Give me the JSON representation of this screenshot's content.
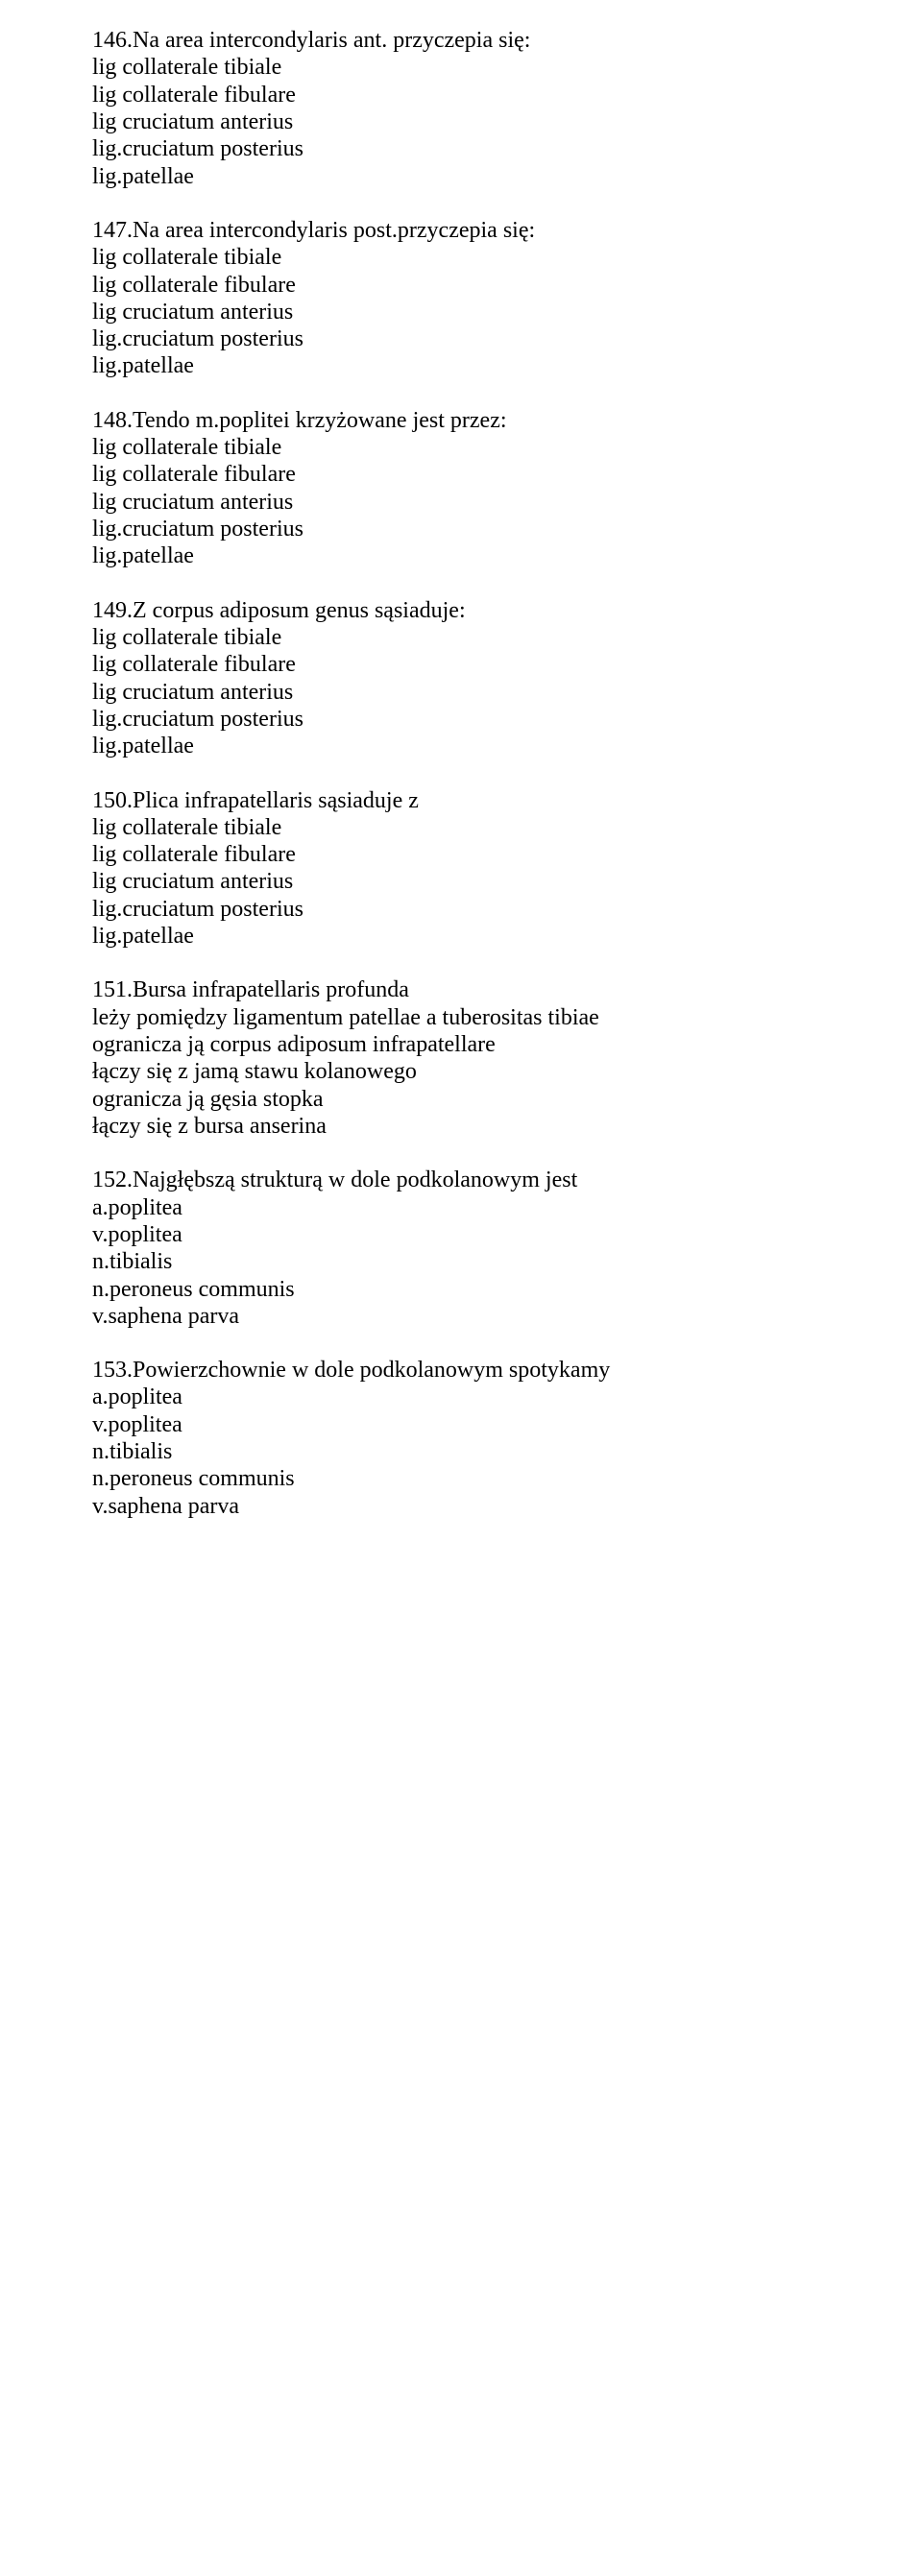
{
  "questions": [
    {
      "title": "146.Na area intercondylaris ant. przyczepia się:",
      "options": [
        "lig collaterale tibiale",
        "lig collaterale fibulare",
        "lig cruciatum anterius",
        "lig.cruciatum posterius",
        "lig.patellae"
      ]
    },
    {
      "title": "147.Na area intercondylaris post.przyczepia się:",
      "options": [
        "lig collaterale tibiale",
        "lig collaterale fibulare",
        "lig cruciatum anterius",
        "lig.cruciatum posterius",
        "lig.patellae"
      ]
    },
    {
      "title": "148.Tendo m.poplitei krzyżowane jest przez:",
      "options": [
        "lig collaterale tibiale",
        "lig collaterale fibulare",
        "lig cruciatum anterius",
        "lig.cruciatum posterius",
        "lig.patellae"
      ]
    },
    {
      "title": "149.Z corpus adiposum genus sąsiaduje:",
      "options": [
        "lig collaterale tibiale",
        "lig collaterale fibulare",
        "lig cruciatum anterius",
        "lig.cruciatum posterius",
        "lig.patellae"
      ]
    },
    {
      "title": "150.Plica infrapatellaris sąsiaduje z",
      "options": [
        "lig collaterale tibiale",
        "lig collaterale fibulare",
        "lig cruciatum anterius",
        "lig.cruciatum posterius",
        "lig.patellae"
      ]
    },
    {
      "title": "151.Bursa infrapatellaris profunda",
      "options": [
        "leży pomiędzy ligamentum patellae a tuberositas tibiae",
        "ogranicza ją corpus adiposum infrapatellare",
        "łączy się z jamą stawu kolanowego",
        "ogranicza ją gęsia stopka",
        "łączy się z bursa anserina"
      ]
    },
    {
      "title": "152.Najgłębszą strukturą w dole podkolanowym jest",
      "options": [
        "a.poplitea",
        "v.poplitea",
        "n.tibialis",
        "n.peroneus communis",
        "v.saphena parva"
      ]
    },
    {
      "title": "153.Powierzchownie w dole podkolanowym spotykamy",
      "options": [
        "a.poplitea",
        "v.poplitea",
        "n.tibialis",
        "n.peroneus communis",
        "v.saphena parva"
      ]
    }
  ]
}
